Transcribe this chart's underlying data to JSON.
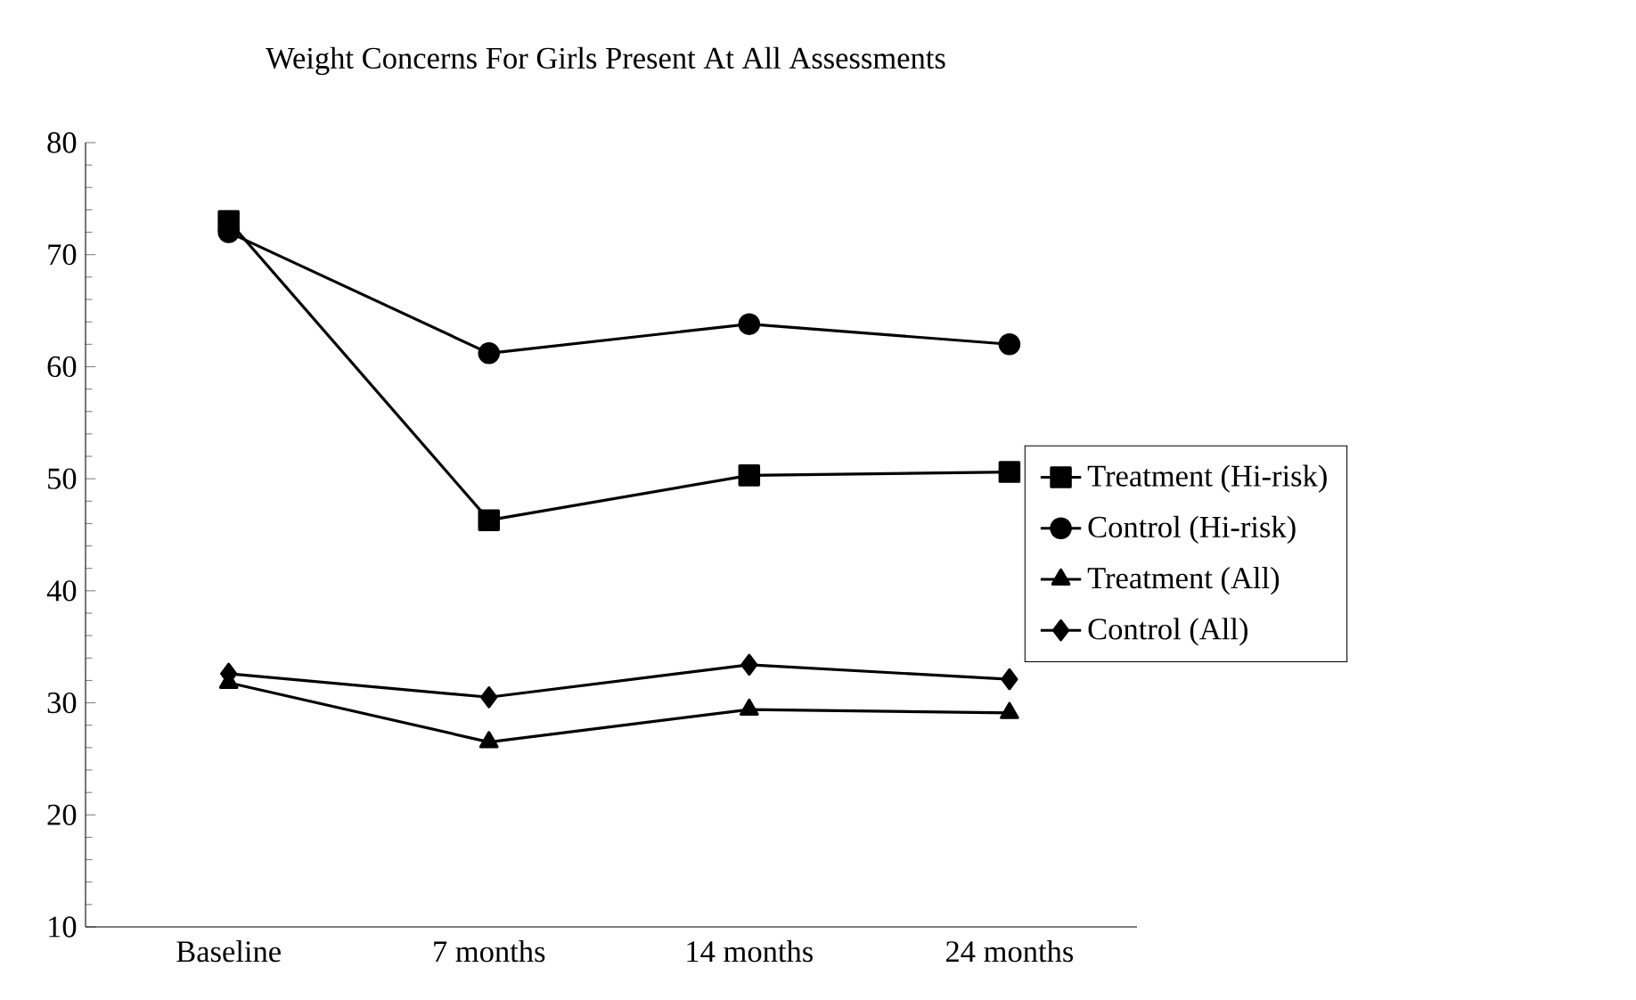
{
  "chart_data": {
    "type": "line",
    "title": "Weight Concerns For Girls Present At All Assessments",
    "categories": [
      "Baseline",
      "7 months",
      "14 months",
      "24 months"
    ],
    "series": [
      {
        "name": "Treatment (Hi-risk)",
        "color": "#000000",
        "marker": "square",
        "values": [
          73,
          46.3,
          50.3,
          50.6
        ]
      },
      {
        "name": "Control (Hi-risk)",
        "color": "#000000",
        "marker": "circle",
        "values": [
          72,
          61.2,
          63.8,
          62
        ]
      },
      {
        "name": "Treatment (All)",
        "color": "#000000",
        "marker": "triangle",
        "values": [
          31.8,
          26.5,
          29.4,
          29.1
        ]
      },
      {
        "name": "Control (All)",
        "color": "#000000",
        "marker": "diamond",
        "values": [
          32.6,
          30.5,
          33.4,
          32.1
        ]
      }
    ],
    "ylim": [
      10,
      80
    ],
    "yticks": [
      10,
      20,
      30,
      40,
      50,
      60,
      70,
      80
    ],
    "grid": false,
    "legend": "right",
    "line_style": "solid"
  }
}
